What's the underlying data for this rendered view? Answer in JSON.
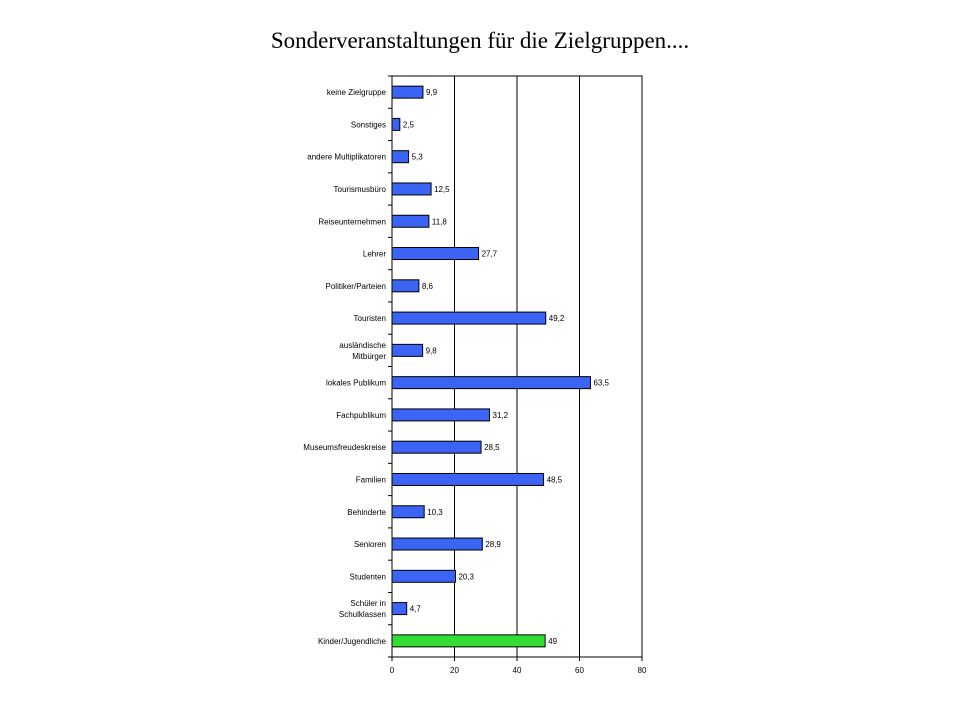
{
  "chart_data": {
    "type": "bar",
    "orientation": "horizontal",
    "title": "Sonderveranstaltungen für die Zielgruppen....",
    "xlabel": "",
    "ylabel": "",
    "xlim": [
      0,
      80
    ],
    "x_ticks": [
      "0",
      "20",
      "40",
      "60",
      "80"
    ],
    "grid": "vertical",
    "legend": "none",
    "categories": [
      "keine Zielgruppe",
      "Sonstiges",
      "andere Multiplikatoren",
      "Tourismusbüro",
      "Reiseunternehmen",
      "Lehrer",
      "Politiker/Parteien",
      "Touristen",
      [
        "ausländische",
        "Mitbürger"
      ],
      "lokales Publikum",
      "Fachpublikum",
      "Museumsfreudeskreise",
      "Familien",
      "Behinderte",
      "Senioren",
      "Studenten",
      [
        "Schüler in",
        "Schulklassen"
      ],
      "Kinder/Jugendliche"
    ],
    "values": [
      9.9,
      2.5,
      5.3,
      12.5,
      11.8,
      27.7,
      8.6,
      49.2,
      9.8,
      63.5,
      31.2,
      28.5,
      48.5,
      10.3,
      28.9,
      20.3,
      4.7,
      49
    ],
    "value_labels": [
      "9,9",
      "2,5",
      "5,3",
      "12,5",
      "11,8",
      "27,7",
      "8,6",
      "49,2",
      "9,8",
      "63,5",
      "31,2",
      "28,5",
      "48,5",
      "10,3",
      "28,9",
      "20,3",
      "4,7",
      "49"
    ],
    "colors": {
      "bar": "#3b64f4",
      "highlight_bar": "#33dd33",
      "highlight_index": 17,
      "grid": "#000000"
    }
  }
}
